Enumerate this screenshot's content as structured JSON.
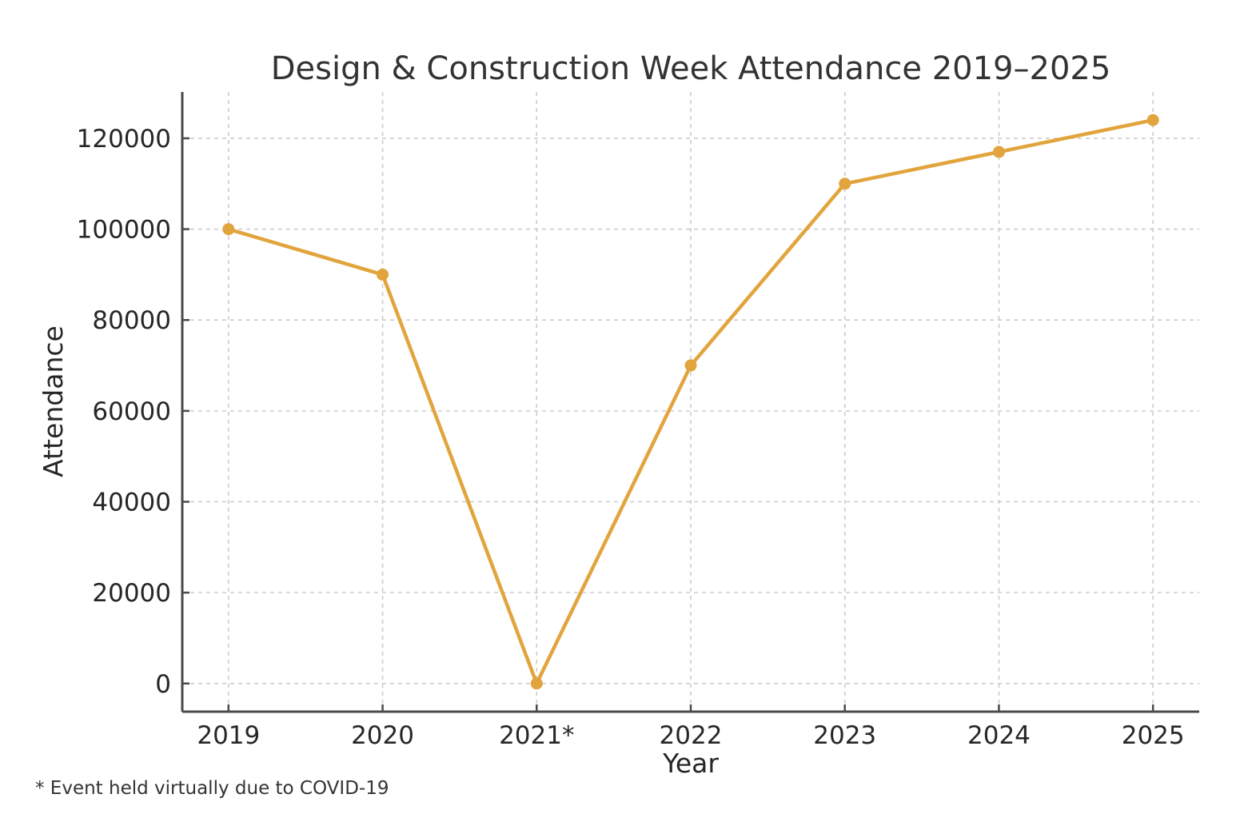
{
  "chart_data": {
    "type": "line",
    "title": "Design & Construction Week Attendance 2019–2025",
    "xlabel": "Year",
    "ylabel": "Attendance",
    "footnote": "* Event held virtually due to COVID-19",
    "x": [
      2019,
      2020,
      2021,
      2022,
      2023,
      2024,
      2025
    ],
    "x_tick_labels": [
      "2019",
      "2020",
      "2021*",
      "2022",
      "2023",
      "2024",
      "2025"
    ],
    "series": [
      {
        "name": "Attendance",
        "values": [
          100000,
          90000,
          0,
          70000,
          110000,
          117000,
          124000
        ]
      }
    ],
    "yticks": [
      0,
      20000,
      40000,
      60000,
      80000,
      100000,
      120000
    ],
    "ytick_labels": [
      "0",
      "20000",
      "40000",
      "60000",
      "80000",
      "100000",
      "120000"
    ],
    "xlim": [
      2018.7,
      2025.3
    ],
    "ylim": [
      -6200,
      130200
    ],
    "grid": true,
    "grid_style": "dashed",
    "legend": "none",
    "colors": {
      "line": "#E2A43C",
      "marker": "#E2A43C",
      "grid": "#CCCCCC",
      "spine": "#4A4A4A",
      "tick_text": "#262626",
      "title_text": "#333333",
      "background": "#FFFFFF"
    }
  }
}
